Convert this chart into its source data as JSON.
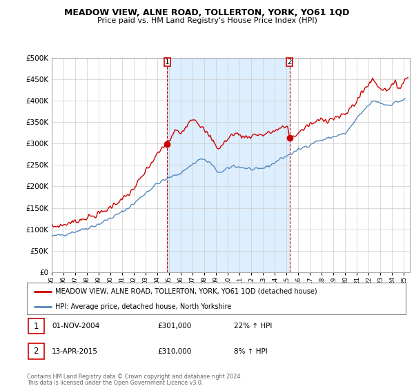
{
  "title": "MEADOW VIEW, ALNE ROAD, TOLLERTON, YORK, YO61 1QD",
  "subtitle": "Price paid vs. HM Land Registry's House Price Index (HPI)",
  "legend_line1": "MEADOW VIEW, ALNE ROAD, TOLLERTON, YORK, YO61 1QD (detached house)",
  "legend_line2": "HPI: Average price, detached house, North Yorkshire",
  "annotation1_date": "01-NOV-2004",
  "annotation1_price": "£301,000",
  "annotation1_hpi": "22% ↑ HPI",
  "annotation2_date": "13-APR-2015",
  "annotation2_price": "£310,000",
  "annotation2_hpi": "8% ↑ HPI",
  "footer1": "Contains HM Land Registry data © Crown copyright and database right 2024.",
  "footer2": "This data is licensed under the Open Government Licence v3.0.",
  "red_color": "#cc0000",
  "blue_color": "#5588bb",
  "shade_color": "#ddeeff",
  "bg_color": "#ffffff",
  "grid_color": "#cccccc",
  "ann_box_color": "#cc0000",
  "ylim": [
    0,
    500000
  ],
  "yticks": [
    0,
    50000,
    100000,
    150000,
    200000,
    250000,
    300000,
    350000,
    400000,
    450000,
    500000
  ],
  "x_start": 1995.0,
  "x_end": 2025.5,
  "sale1_year": 2004.833,
  "sale1_price": 301000,
  "sale2_year": 2015.25,
  "sale2_price": 310000,
  "xtick_years": [
    1995,
    1996,
    1997,
    1998,
    1999,
    2000,
    2001,
    2002,
    2003,
    2004,
    2005,
    2006,
    2007,
    2008,
    2009,
    2010,
    2011,
    2012,
    2013,
    2014,
    2015,
    2016,
    2017,
    2018,
    2019,
    2020,
    2021,
    2022,
    2023,
    2024,
    2025
  ]
}
